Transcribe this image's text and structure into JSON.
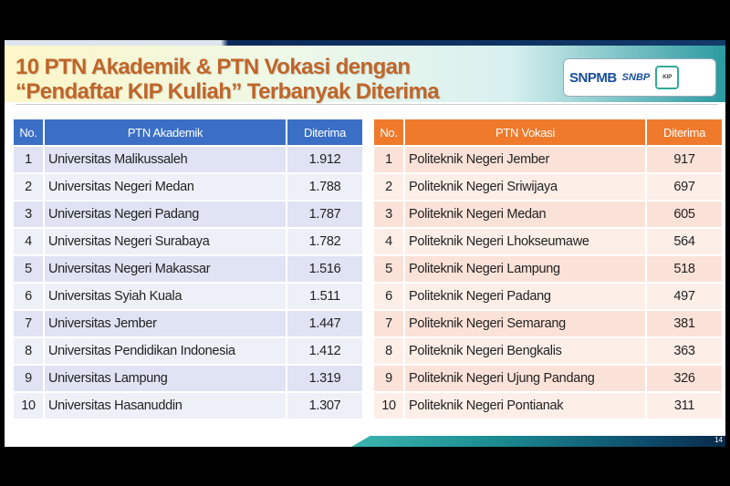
{
  "title": {
    "line1": "10 PTN Akademik & PTN Vokasi dengan",
    "line2": "“Pendaftar KIP Kuliah” Terbanyak Diterima"
  },
  "logos": {
    "snpmb": "SNPMB",
    "snbp": "SNBP",
    "kip": "KIP"
  },
  "akademik": {
    "headers": [
      "No.",
      "PTN Akademik",
      "Diterima"
    ],
    "rows": [
      [
        "1",
        "Universitas Malikussaleh",
        "1.912"
      ],
      [
        "2",
        "Universitas Negeri Medan",
        "1.788"
      ],
      [
        "3",
        "Universitas Negeri Padang",
        "1.787"
      ],
      [
        "4",
        "Universitas Negeri Surabaya",
        "1.782"
      ],
      [
        "5",
        "Universitas Negeri Makassar",
        "1.516"
      ],
      [
        "6",
        "Universitas Syiah Kuala",
        "1.511"
      ],
      [
        "7",
        "Universitas Jember",
        "1.447"
      ],
      [
        "8",
        "Universitas Pendidikan Indonesia",
        "1.412"
      ],
      [
        "9",
        "Universitas Lampung",
        "1.319"
      ],
      [
        "10",
        "Universitas Hasanuddin",
        "1.307"
      ]
    ]
  },
  "vokasi": {
    "headers": [
      "No.",
      "PTN Vokasi",
      "Diterima"
    ],
    "rows": [
      [
        "1",
        "Politeknik Negeri Jember",
        "917"
      ],
      [
        "2",
        "Politeknik Negeri Sriwijaya",
        "697"
      ],
      [
        "3",
        "Politeknik Negeri Medan",
        "605"
      ],
      [
        "4",
        "Politeknik Negeri Lhokseumawe",
        "564"
      ],
      [
        "5",
        "Politeknik Negeri Lampung",
        "518"
      ],
      [
        "6",
        "Politeknik Negeri Padang",
        "497"
      ],
      [
        "7",
        "Politeknik Negeri Semarang",
        "381"
      ],
      [
        "8",
        "Politeknik Negeri Bengkalis",
        "363"
      ],
      [
        "9",
        "Politeknik Negeri Ujung Pandang",
        "326"
      ],
      [
        "10",
        "Politeknik Negeri Pontianak",
        "311"
      ]
    ]
  },
  "page_number": "14",
  "colors": {
    "akademik_header": "#3b6fc6",
    "vokasi_header": "#ef7a2c",
    "title": "#c0652a"
  }
}
